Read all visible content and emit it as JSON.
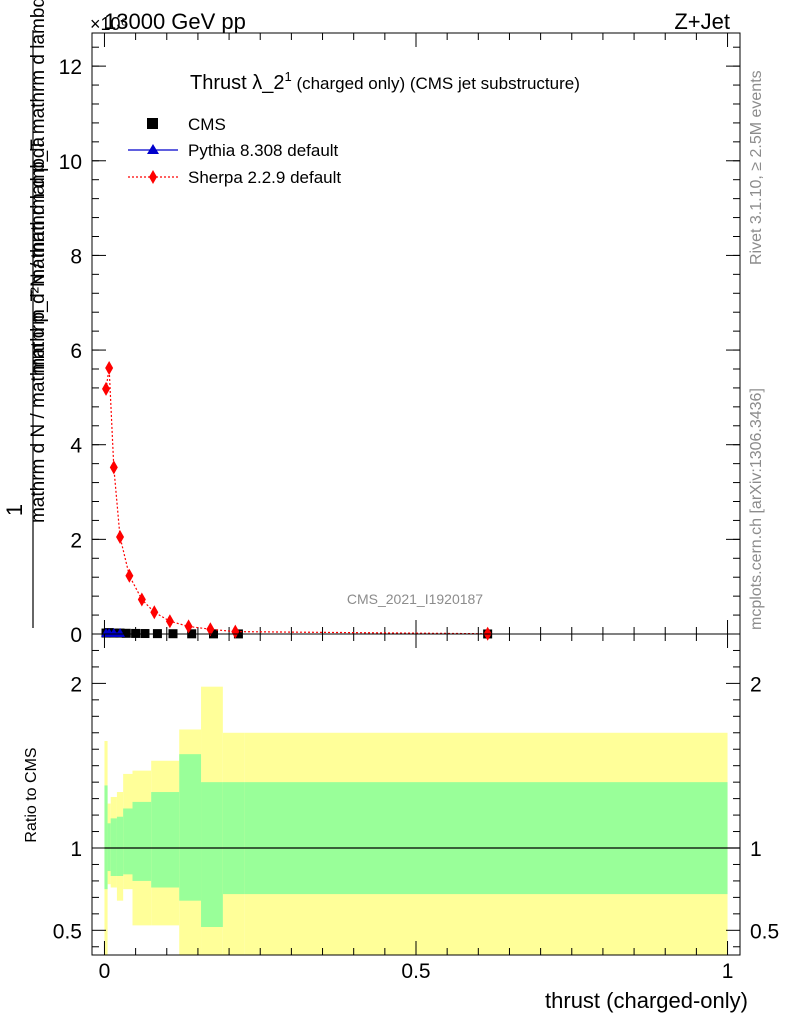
{
  "header": {
    "energy_label": "13000 GeV pp",
    "process_label": "Z+Jet",
    "exponent_label": "×10⁶"
  },
  "side_labels": {
    "rivet": "Rivet 3.1.10, ≥ 2.5M events",
    "mcplots": "mcplots.cern.ch [arXiv:1306.3436]"
  },
  "watermark": "CMS_2021_I1920187",
  "chart_data": [
    {
      "type": "scatter",
      "panel": "main",
      "title": "Thrust λ_2¹ (charged only) (CMS jet substructure)",
      "title_main": "Thrust λ_2",
      "title_sup": "1",
      "title_rest": " (charged only) (CMS jet substructure)",
      "ylabel_numerator": "1",
      "ylabel_denominator": "mathrm d N / mathrm d p_T mathrm d lambda",
      "ylabel_main": "mathrm d²N / mathrm d p_T mathrm d lambda",
      "ylim": [
        0,
        12.7
      ],
      "ylim_unit_note": "×10⁶",
      "yticks": [
        0,
        2,
        4,
        6,
        8,
        10,
        12
      ],
      "xlim": [
        -0.02,
        1.02
      ],
      "legend_position": "top-left",
      "series": [
        {
          "name": "CMS",
          "color": "#000000",
          "marker": "square",
          "x": [
            0.0025,
            0.0075,
            0.015,
            0.025,
            0.035,
            0.05,
            0.065,
            0.085,
            0.11,
            0.14,
            0.175,
            0.215,
            0.615
          ],
          "y": [
            0.02,
            0.03,
            0.02,
            0.02,
            0.015,
            0.012,
            0.01,
            0.008,
            0.006,
            0.004,
            0.003,
            0.002,
            0.001
          ]
        },
        {
          "name": "Pythia 8.308 default",
          "color": "#0000cc",
          "marker": "triangle",
          "x": [
            0.0025,
            0.0075,
            0.015,
            0.025
          ],
          "y": [
            0.02,
            0.02,
            0.02,
            0.02
          ]
        },
        {
          "name": "Sherpa 2.2.9 default",
          "color": "#ff0000",
          "marker": "diamond",
          "linestyle": "dotted",
          "x": [
            0.0025,
            0.0075,
            0.015,
            0.025,
            0.04,
            0.06,
            0.08,
            0.105,
            0.135,
            0.17,
            0.21,
            0.615
          ],
          "y": [
            5.18,
            5.62,
            3.52,
            2.05,
            1.23,
            0.73,
            0.46,
            0.27,
            0.16,
            0.1,
            0.05,
            0.005
          ]
        }
      ]
    },
    {
      "type": "area",
      "panel": "ratio",
      "ylabel": "Ratio to CMS",
      "ylim": [
        0.35,
        2.3
      ],
      "yticks": [
        0.5,
        1,
        2
      ],
      "xlabel": "thrust (charged-only)",
      "xlim": [
        -0.02,
        1.02
      ],
      "xticks": [
        0,
        0.5,
        1
      ],
      "reference_line": 1,
      "bins": [
        0,
        0.005,
        0.01,
        0.02,
        0.03,
        0.045,
        0.075,
        0.12,
        0.155,
        0.19,
        0.225,
        1.0
      ],
      "bands": [
        {
          "name": "yellow",
          "color": "#ffff99",
          "low": [
            0.35,
            0.78,
            0.76,
            0.68,
            0.75,
            0.53,
            0.53,
            0.35,
            0.35,
            0.35,
            0.35
          ],
          "high": [
            1.65,
            1.27,
            1.31,
            1.34,
            1.45,
            1.47,
            1.53,
            1.72,
            1.98,
            1.7,
            1.7
          ]
        },
        {
          "name": "green",
          "color": "#99ff99",
          "low": [
            0.75,
            0.86,
            0.83,
            0.83,
            0.84,
            0.8,
            0.76,
            0.68,
            0.52,
            0.72,
            0.72
          ],
          "high": [
            1.38,
            1.15,
            1.18,
            1.19,
            1.24,
            1.28,
            1.34,
            1.57,
            1.4,
            1.4,
            1.4
          ]
        }
      ]
    }
  ]
}
